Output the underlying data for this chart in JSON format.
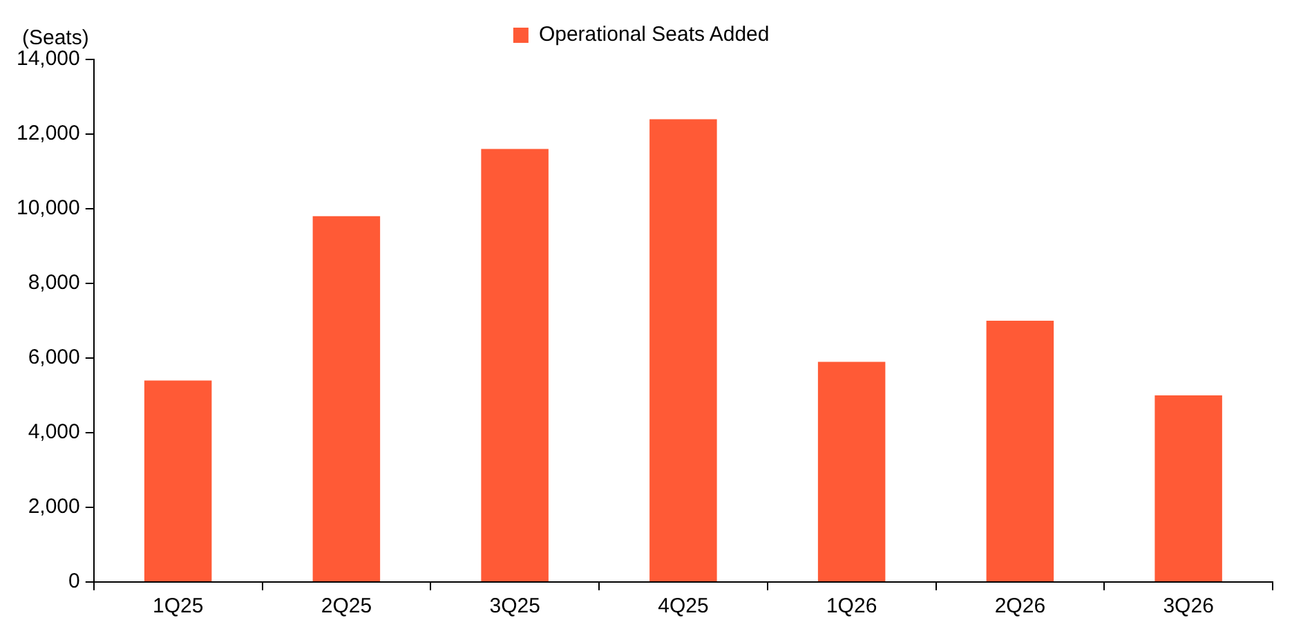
{
  "chart_data": {
    "type": "bar",
    "ylabel": "(Seats)",
    "categories": [
      "1Q25",
      "2Q25",
      "3Q25",
      "4Q25",
      "1Q26",
      "2Q26",
      "3Q26"
    ],
    "series": [
      {
        "name": "Operational Seats Added",
        "color": "#ff5a36",
        "values": [
          5400,
          9800,
          11600,
          12400,
          5900,
          7000,
          5000
        ]
      }
    ],
    "ylim": [
      0,
      14000
    ],
    "yticks": [
      {
        "value": 0,
        "label": "0"
      },
      {
        "value": 2000,
        "label": "2,000"
      },
      {
        "value": 4000,
        "label": "4,000"
      },
      {
        "value": 6000,
        "label": "6,000"
      },
      {
        "value": 8000,
        "label": "8,000"
      },
      {
        "value": 10000,
        "label": "10,000"
      },
      {
        "value": 12000,
        "label": "12,000"
      },
      {
        "value": 14000,
        "label": "14,000"
      }
    ],
    "grid": false,
    "legend": "top"
  }
}
